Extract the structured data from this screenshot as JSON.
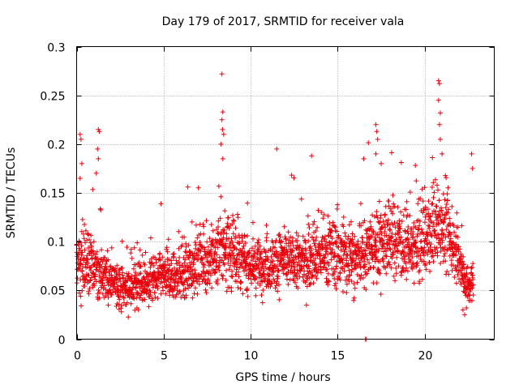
{
  "chart_data": {
    "type": "scatter",
    "title": "Day 179 of 2017, SRMTID for receiver vala",
    "xlabel": "GPS time / hours",
    "ylabel": "SRMTID / TECUs",
    "xlim": [
      0,
      24
    ],
    "ylim": [
      0,
      0.3
    ],
    "xticks": [
      0,
      5,
      10,
      15,
      20
    ],
    "yticks": [
      0,
      0.05,
      0.1,
      0.15,
      0.2,
      0.25,
      0.3
    ],
    "xtick_labels": [
      "0",
      "5",
      "10",
      "15",
      "20"
    ],
    "ytick_labels": [
      "0",
      "0.05",
      "0.1",
      "0.15",
      "0.2",
      "0.25",
      "0.3"
    ],
    "grid": true,
    "marker": "+",
    "color": "#e8000b",
    "series": [
      {
        "name": "SRMTID",
        "profile_hours": [
          0,
          0.5,
          1,
          1.5,
          2,
          2.5,
          3,
          3.5,
          4,
          4.5,
          5,
          5.5,
          6,
          6.5,
          7,
          7.5,
          8,
          8.5,
          9,
          9.5,
          10,
          10.5,
          11,
          11.5,
          12,
          12.5,
          13,
          13.5,
          14,
          14.5,
          15,
          15.5,
          16,
          16.5,
          17,
          17.5,
          18,
          18.5,
          19,
          19.5,
          20,
          20.5,
          21,
          21.5,
          22,
          22.5,
          22.8
        ],
        "profile_median": [
          0.072,
          0.08,
          0.07,
          0.065,
          0.06,
          0.055,
          0.052,
          0.055,
          0.058,
          0.06,
          0.065,
          0.062,
          0.068,
          0.072,
          0.078,
          0.08,
          0.085,
          0.095,
          0.09,
          0.08,
          0.075,
          0.075,
          0.078,
          0.08,
          0.08,
          0.08,
          0.078,
          0.085,
          0.085,
          0.09,
          0.088,
          0.085,
          0.08,
          0.085,
          0.095,
          0.1,
          0.105,
          0.1,
          0.095,
          0.09,
          0.1,
          0.115,
          0.12,
          0.1,
          0.08,
          0.05,
          0.06
        ],
        "profile_spread": [
          0.03,
          0.035,
          0.03,
          0.025,
          0.02,
          0.02,
          0.018,
          0.02,
          0.02,
          0.02,
          0.022,
          0.022,
          0.025,
          0.025,
          0.025,
          0.025,
          0.03,
          0.04,
          0.035,
          0.025,
          0.022,
          0.022,
          0.025,
          0.025,
          0.025,
          0.025,
          0.025,
          0.028,
          0.028,
          0.03,
          0.03,
          0.03,
          0.028,
          0.03,
          0.035,
          0.035,
          0.035,
          0.032,
          0.03,
          0.03,
          0.035,
          0.04,
          0.04,
          0.03,
          0.02,
          0.015,
          0.02
        ],
        "outliers": [
          {
            "x": 0.2,
            "y": 0.21
          },
          {
            "x": 0.25,
            "y": 0.205
          },
          {
            "x": 0.3,
            "y": 0.18
          },
          {
            "x": 0.2,
            "y": 0.165
          },
          {
            "x": 1.25,
            "y": 0.215
          },
          {
            "x": 1.3,
            "y": 0.213
          },
          {
            "x": 1.2,
            "y": 0.195
          },
          {
            "x": 1.25,
            "y": 0.185
          },
          {
            "x": 8.35,
            "y": 0.272
          },
          {
            "x": 8.4,
            "y": 0.233
          },
          {
            "x": 8.35,
            "y": 0.225
          },
          {
            "x": 8.45,
            "y": 0.21
          },
          {
            "x": 8.3,
            "y": 0.2
          },
          {
            "x": 8.4,
            "y": 0.185
          },
          {
            "x": 11.5,
            "y": 0.195
          },
          {
            "x": 13.5,
            "y": 0.188
          },
          {
            "x": 16.5,
            "y": 0.185
          },
          {
            "x": 17.2,
            "y": 0.22
          },
          {
            "x": 17.25,
            "y": 0.213
          },
          {
            "x": 17.3,
            "y": 0.205
          },
          {
            "x": 17.2,
            "y": 0.19
          },
          {
            "x": 17.5,
            "y": 0.18
          },
          {
            "x": 20.8,
            "y": 0.265
          },
          {
            "x": 20.85,
            "y": 0.262
          },
          {
            "x": 20.8,
            "y": 0.245
          },
          {
            "x": 20.9,
            "y": 0.232
          },
          {
            "x": 20.85,
            "y": 0.22
          },
          {
            "x": 20.9,
            "y": 0.205
          },
          {
            "x": 21.0,
            "y": 0.19
          },
          {
            "x": 22.7,
            "y": 0.19
          },
          {
            "x": 22.75,
            "y": 0.175
          },
          {
            "x": 22.3,
            "y": 0.025
          },
          {
            "x": 22.2,
            "y": 0.03
          },
          {
            "x": 22.4,
            "y": 0.032
          }
        ],
        "zero_points": [
          {
            "x": 16.6,
            "y": 0
          },
          {
            "x": 16.65,
            "y": 0
          }
        ]
      }
    ]
  }
}
